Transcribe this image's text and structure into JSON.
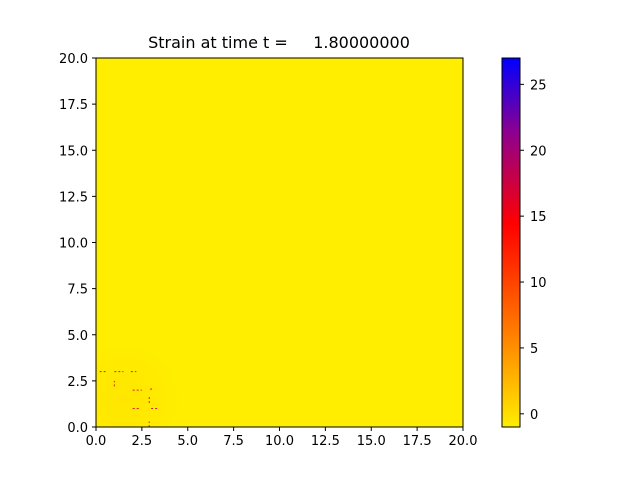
{
  "chart_data": {
    "type": "heatmap",
    "title": "Strain at time t =     1.80000000",
    "xlabel": "",
    "ylabel": "",
    "xlim": [
      0,
      20
    ],
    "ylim": [
      0,
      20
    ],
    "x_ticks": [
      "0.0",
      "2.5",
      "5.0",
      "7.5",
      "10.0",
      "12.5",
      "15.0",
      "17.5",
      "20.0"
    ],
    "y_ticks": [
      "0.0",
      "2.5",
      "5.0",
      "7.5",
      "10.0",
      "12.5",
      "15.0",
      "17.5",
      "20.0"
    ],
    "field": {
      "background_value": -1,
      "hot_region_center": [
        1.5,
        1.5
      ],
      "hot_region_radius": 3.5,
      "description_values": "strain field near zero everywhere except a small region near the origin"
    },
    "colorbar": {
      "range": [
        -1,
        27
      ],
      "ticks": [
        "0",
        "5",
        "10",
        "15",
        "20",
        "25"
      ],
      "tick_values": [
        0,
        5,
        10,
        15,
        20,
        25
      ],
      "colors": [
        "#ffee00",
        "#ff0000",
        "#0000ff"
      ]
    },
    "grid": false,
    "legend": "none"
  }
}
